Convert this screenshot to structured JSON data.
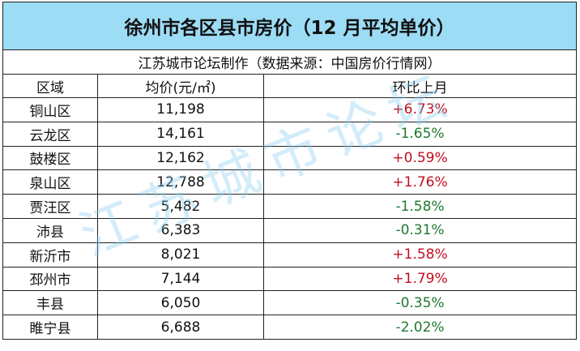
{
  "title": "徐州市各区县市房价（12 月平均单价）",
  "subtitle": "江苏城市论坛制作（数据来源：中国房价行情网）",
  "watermark": "江苏城市论坛",
  "table": {
    "header": [
      "区域",
      "均价(元/㎡)",
      "环比上月"
    ],
    "rows": [
      [
        "铜山区",
        "11,198",
        "+6.73%"
      ],
      [
        "云龙区",
        "14,161",
        "-1.65%"
      ],
      [
        "鼓楼区",
        "12,162",
        "+0.59%"
      ],
      [
        "泉山区",
        "12,788",
        "+1.76%"
      ],
      [
        "贾汪区",
        "5,482",
        "-1.58%"
      ],
      [
        "沛县",
        "6,383",
        "-0.31%"
      ],
      [
        "新沂市",
        "8,021",
        "+1.58%"
      ],
      [
        "邳州市",
        "7,144",
        "+1.79%"
      ],
      [
        "丰县",
        "6,050",
        "-0.35%"
      ],
      [
        "睢宁县",
        "6,688",
        "-2.02%"
      ]
    ]
  }
}
